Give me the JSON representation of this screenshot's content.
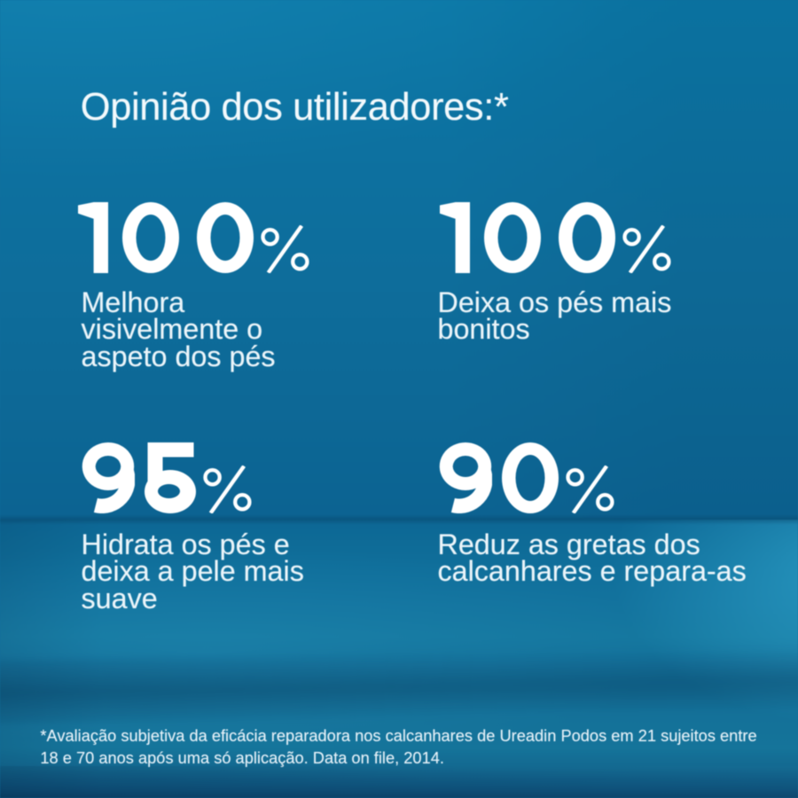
{
  "title": "Opinião dos utilizadores:*",
  "stats": [
    {
      "value": "100",
      "unit": "%",
      "lines": [
        "Melhora",
        "visivelmente o",
        "aspeto dos pés"
      ]
    },
    {
      "value": "100",
      "unit": "%",
      "lines": [
        "Deixa os pés mais",
        "bonitos"
      ]
    },
    {
      "value": "95",
      "unit": "%",
      "lines": [
        "Hidrata os pés e",
        "deixa a pele mais",
        "suave"
      ]
    },
    {
      "value": "90",
      "unit": "%",
      "lines": [
        "Reduz as gretas dos",
        "calcanhares e repara-as"
      ]
    }
  ],
  "footnote_lines": [
    "*Avaliação subjetiva da eficácia reparadora nos calcanhares de Ureadin Podos em 21 sujeitos entre",
    "18 e 70 anos após uma só aplicação. Data on file, 2014."
  ],
  "colors": {
    "background_top": "#0b77a6",
    "background_mid": "#0e6d9b",
    "floor": "#15779f",
    "bottom_band": "#0e4f78",
    "text": "#ffffff"
  }
}
